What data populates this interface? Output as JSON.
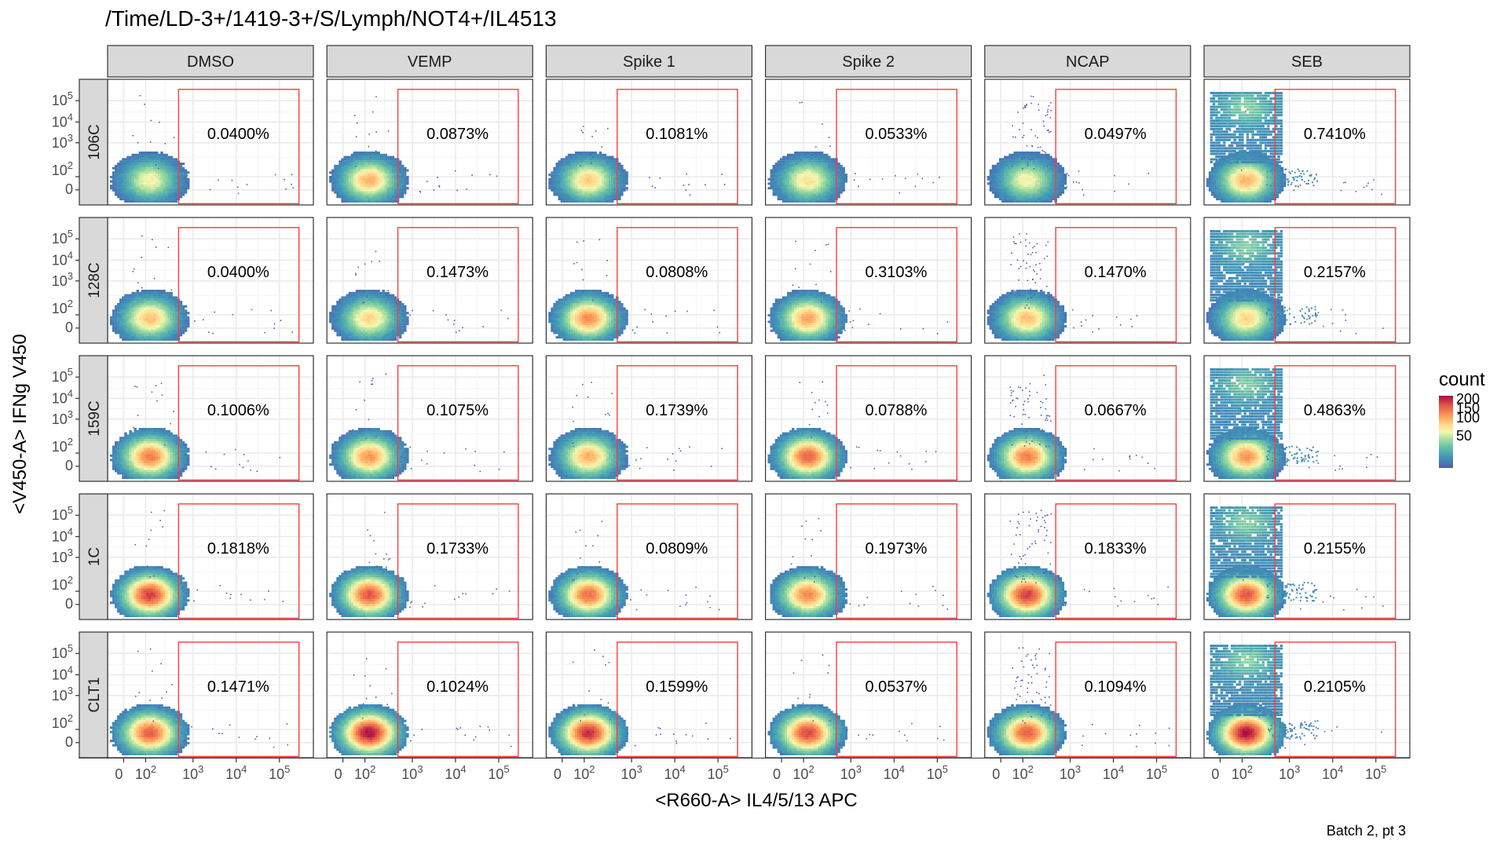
{
  "title": "/Time/LD-3+/1419-3+/S/Lymph/NOT4+/IL4513",
  "caption": "Batch 2, pt 3",
  "colors": {
    "gate": "#ff3b3b",
    "strip_fill": "#d9d9d9",
    "panel_border": "#333333",
    "grid": "#ebebeb"
  },
  "chart_data": {
    "type": "heatmap",
    "xlabel": "<R660-A> IL4/5/13 APC",
    "ylabel": "<V450-A> IFNg V450",
    "columns": [
      "DMSO",
      "VEMP",
      "Spike 1",
      "Spike 2",
      "NCAP",
      "SEB"
    ],
    "rows": [
      "106C",
      "128C",
      "159C",
      "1C",
      "CLT1"
    ],
    "x_ticks": [
      "0",
      "10^2",
      "10^3",
      "10^4",
      "10^5"
    ],
    "y_ticks": [
      "0",
      "10^2",
      "10^3",
      "10^4",
      "10^5"
    ],
    "gate_percentages": [
      [
        "0.0400%",
        "0.0873%",
        "0.1081%",
        "0.0533%",
        "0.0497%",
        "0.7410%"
      ],
      [
        "0.0400%",
        "0.1473%",
        "0.0808%",
        "0.3103%",
        "0.1470%",
        "0.2157%"
      ],
      [
        "0.1006%",
        "0.1075%",
        "0.1739%",
        "0.0788%",
        "0.0667%",
        "0.4863%"
      ],
      [
        "0.1818%",
        "0.1733%",
        "0.0809%",
        "0.1973%",
        "0.1833%",
        "0.2155%"
      ],
      [
        "0.1471%",
        "0.1024%",
        "0.1599%",
        "0.0537%",
        "0.1094%",
        "0.2105%"
      ]
    ],
    "legend": {
      "title": "count",
      "ticks": [
        "200",
        "150",
        "100",
        "50"
      ],
      "range": [
        0,
        210
      ]
    },
    "grid": true,
    "legend_position": "right"
  }
}
